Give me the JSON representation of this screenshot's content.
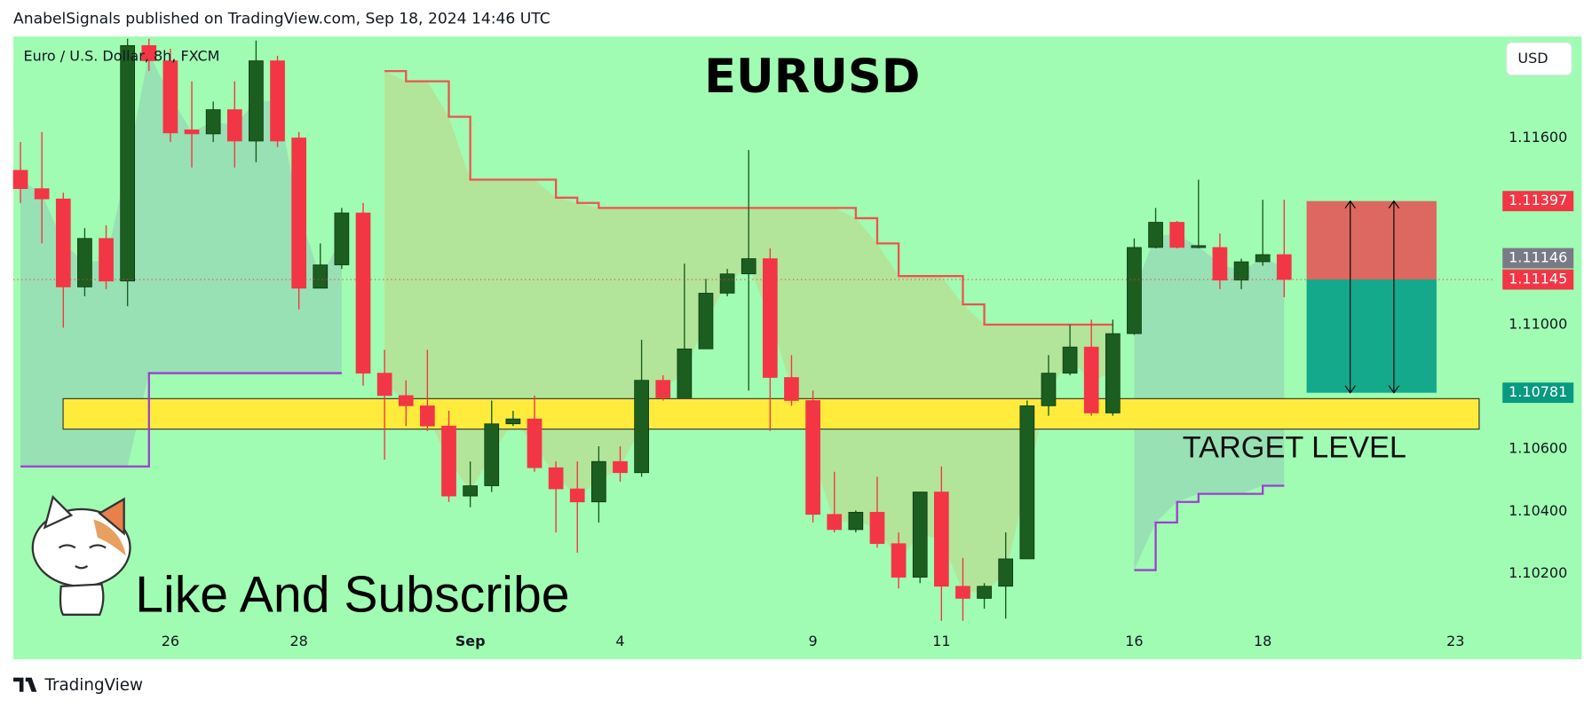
{
  "header": {
    "text": "AnabelSignals published on TradingView.com, Sep 18, 2024 14:46 UTC"
  },
  "footer": {
    "brand": "TradingView"
  },
  "chart_data": {
    "type": "candlestick",
    "symbol": "Euro / U.S. Dollar, 8h, FXCM",
    "title": "EURUSD",
    "currency": "USD",
    "annotations": {
      "target": "TARGET LEVEL",
      "promo": "Like And Subscribe"
    },
    "categories": [
      null,
      null,
      null,
      null,
      null,
      null,
      null,
      "26",
      null,
      null,
      null,
      null,
      null,
      "28",
      null,
      null,
      null,
      null,
      null,
      null,
      null,
      "Sep",
      null,
      null,
      null,
      null,
      null,
      null,
      "4",
      null,
      null,
      null,
      null,
      null,
      null,
      null,
      null,
      "9",
      null,
      null,
      null,
      null,
      null,
      "11",
      null,
      null,
      null,
      null,
      null,
      null,
      null,
      null,
      "16",
      null,
      null,
      null,
      null,
      null,
      "18",
      null,
      null,
      null,
      null,
      null,
      null,
      null,
      null,
      "23"
    ],
    "open": [
      1.11496,
      1.11437,
      1.11404,
      1.11121,
      1.11277,
      1.1114,
      1.11897,
      1.11848,
      1.11626,
      1.11613,
      1.11691,
      1.1159,
      1.11848,
      1.116,
      1.11117,
      1.11192,
      1.11359,
      1.10844,
      1.10772,
      1.10739,
      1.10674,
      1.10449,
      1.10482,
      1.10681,
      1.10697,
      1.1054,
      1.10472,
      1.1043,
      1.1056,
      1.10524,
      1.10821,
      1.10765,
      1.10922,
      1.11101,
      1.11163,
      1.11212,
      1.1083,
      1.10756,
      1.1039,
      1.10341,
      1.10397,
      1.10296,
      1.10188,
      1.10462,
      1.10159,
      1.1012,
      1.10159,
      1.10247,
      1.10739,
      1.10844,
      1.10928,
      1.10716,
      1.10971,
      1.11248,
      1.11329,
      1.11248,
      1.11248,
      1.11143,
      1.11202,
      1.11225,
      null,
      null,
      null,
      null,
      null,
      null,
      null,
      null
    ],
    "high": [
      1.11587,
      1.11619,
      1.11424,
      1.1131,
      1.11319,
      1.11919,
      1.11919,
      1.11887,
      1.11782,
      1.11717,
      1.11782,
      1.11913,
      1.11864,
      1.11619,
      1.11261,
      1.11375,
      1.11391,
      1.10919,
      1.10821,
      1.10919,
      1.10723,
      1.1056,
      1.10756,
      1.10723,
      1.10772,
      1.1056,
      1.1056,
      1.10609,
      1.10609,
      1.10951,
      1.10837,
      1.11196,
      1.11147,
      1.11179,
      1.11561,
      1.11245,
      1.10902,
      1.10788,
      1.10527,
      1.10403,
      1.10511,
      1.10332,
      1.10462,
      1.10544,
      1.1025,
      1.10169,
      1.10332,
      1.10756,
      1.10902,
      1.11,
      1.11016,
      1.11016,
      1.11277,
      1.11375,
      1.11333,
      1.11466,
      1.11293,
      1.11212,
      1.11401,
      1.11401,
      null,
      null,
      null,
      null,
      null,
      null,
      null,
      null
    ],
    "low": [
      1.11391,
      1.11261,
      1.1099,
      1.11091,
      1.11114,
      1.11059,
      1.11815,
      1.11587,
      1.11505,
      1.11587,
      1.11505,
      1.11522,
      1.11571,
      1.11049,
      1.11117,
      1.11179,
      1.10804,
      1.10566,
      1.10674,
      1.10658,
      1.1043,
      1.10413,
      1.10462,
      1.10674,
      1.10527,
      1.10332,
      1.10267,
      1.10364,
      1.10495,
      1.10511,
      1.10756,
      1.10765,
      1.10922,
      1.11091,
      1.10788,
      1.10658,
      1.10739,
      1.10364,
      1.10332,
      1.10332,
      1.10283,
      1.10152,
      1.10169,
      1.10048,
      1.10048,
      1.10087,
      1.10055,
      1.10247,
      1.10707,
      1.10837,
      1.10707,
      1.10707,
      1.10967,
      1.11245,
      1.11245,
      1.11245,
      1.11114,
      1.11114,
      1.11189,
      1.11088,
      null,
      null,
      null,
      null,
      null,
      null,
      null,
      null
    ],
    "close": [
      1.11437,
      1.11404,
      1.11121,
      1.11277,
      1.1114,
      1.11897,
      1.11848,
      1.11616,
      1.11613,
      1.11691,
      1.1159,
      1.11848,
      1.1159,
      1.11117,
      1.11192,
      1.11359,
      1.10844,
      1.10772,
      1.10739,
      1.10674,
      1.10449,
      1.10482,
      1.10681,
      1.10697,
      1.1054,
      1.10472,
      1.1043,
      1.1056,
      1.10524,
      1.10821,
      1.10765,
      1.10922,
      1.11101,
      1.11163,
      1.11212,
      1.1083,
      1.10756,
      1.1039,
      1.10341,
      1.10397,
      1.10296,
      1.10188,
      1.10462,
      1.10159,
      1.1012,
      1.10159,
      1.10247,
      1.10739,
      1.10844,
      1.10928,
      1.10716,
      1.10971,
      1.11248,
      1.11329,
      1.11248,
      1.11254,
      1.11143,
      1.11202,
      1.11225,
      1.11145,
      null,
      null,
      null,
      null,
      null,
      null,
      null,
      null
    ],
    "up_color": "#1b5e20",
    "down_color": "#f23645",
    "lines": [
      {
        "color": "#f0524f",
        "fill": "rgba(240,150,70,0.22)",
        "values": [
          null,
          null,
          null,
          null,
          null,
          null,
          null,
          null,
          null,
          null,
          null,
          null,
          null,
          null,
          null,
          null,
          null,
          1.11815,
          1.11782,
          1.11782,
          1.11668,
          1.11466,
          1.11466,
          1.11466,
          1.11466,
          1.11408,
          1.11391,
          1.11375,
          1.11375,
          1.11375,
          1.11375,
          1.11375,
          1.11375,
          1.11375,
          1.11375,
          1.11375,
          1.11375,
          1.11375,
          1.11375,
          1.11342,
          1.11261,
          1.11156,
          1.11156,
          1.11156,
          1.11065,
          1.11,
          1.11,
          1.11,
          1.11,
          1.11,
          1.11,
          1.11,
          null,
          null,
          null,
          null,
          null,
          null,
          null,
          null,
          null,
          null,
          null,
          null,
          null,
          null,
          null,
          null
        ]
      },
      {
        "color": "#9c3fd0",
        "fill": "rgba(120,120,190,0.2)",
        "values": [
          1.10544,
          1.10544,
          1.10544,
          1.10544,
          1.10544,
          1.10544,
          1.10844,
          1.10844,
          1.10844,
          1.10844,
          1.10844,
          1.10844,
          1.10844,
          1.10844,
          1.10844,
          1.10844,
          null,
          null,
          null,
          null,
          null,
          null,
          null,
          null,
          null,
          null,
          null,
          null,
          null,
          null,
          null,
          null,
          null,
          null,
          null,
          null,
          null,
          null,
          null,
          null,
          null,
          null,
          null,
          null,
          null,
          null,
          null,
          null,
          null,
          null,
          null,
          null,
          1.10211,
          1.10364,
          1.1043,
          1.10456,
          1.10456,
          1.10456,
          1.10482,
          1.10482,
          null,
          null,
          null,
          null,
          null,
          null,
          null,
          null
        ]
      }
    ],
    "zone": {
      "top": 1.10762,
      "bottom": 1.10664,
      "color": "#ffeb3b"
    },
    "position": {
      "stop": 1.11397,
      "entry": 1.11145,
      "target": 1.10781,
      "stop_color": "rgba(242,54,69,0.75)",
      "target_color": "#14a98b"
    },
    "price_labels": [
      {
        "value": 1.11397,
        "color": "#f23645"
      },
      {
        "value": 1.11146,
        "color": "#787b86"
      },
      {
        "value": 1.11145,
        "color": "#f23645"
      },
      {
        "value": 1.10781,
        "color": "#089981"
      }
    ],
    "ylim": [
      1.10022,
      1.11926
    ],
    "yticks": [
      {
        "value": 1.116,
        "label": "1.11600"
      },
      {
        "value": 1.11,
        "label": "1.11000"
      },
      {
        "value": 1.106,
        "label": "1.10600"
      },
      {
        "value": 1.104,
        "label": "1.10400"
      },
      {
        "value": 1.102,
        "label": "1.10200"
      }
    ],
    "background": "#a0fcb2"
  }
}
